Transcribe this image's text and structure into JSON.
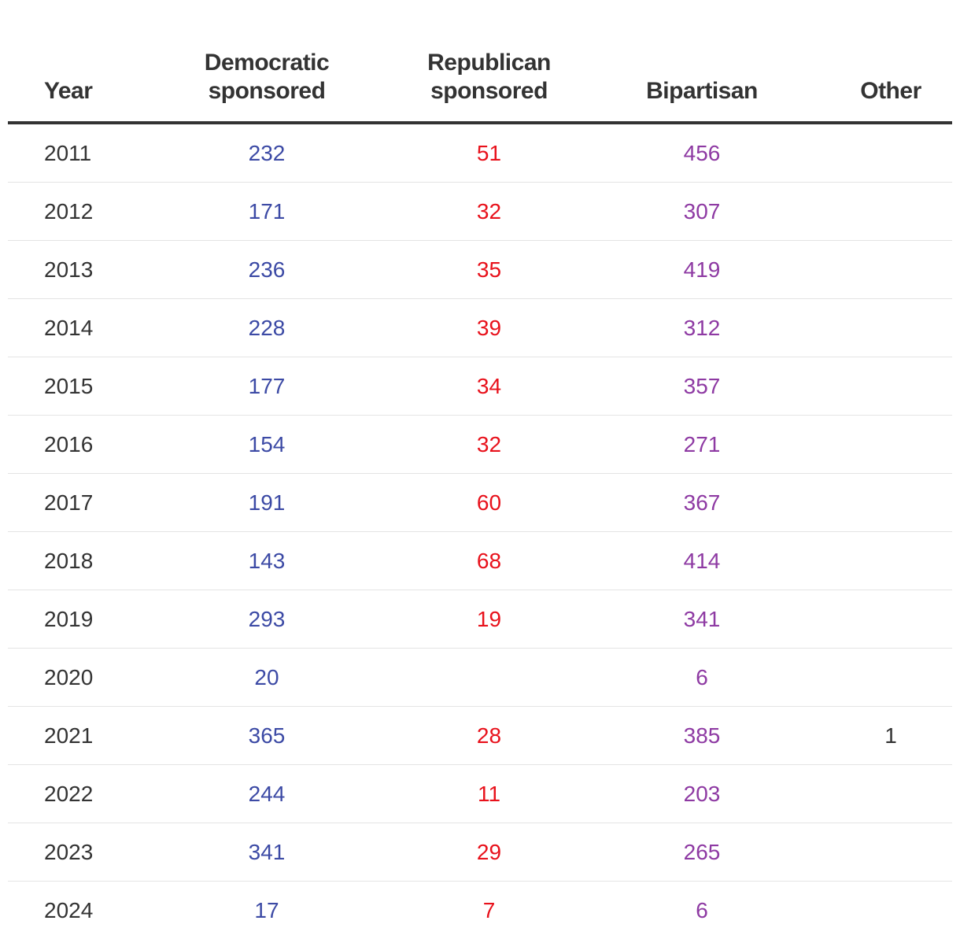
{
  "chart_data": {
    "type": "table",
    "columns": [
      {
        "key": "year",
        "label_lines": [
          "Year"
        ]
      },
      {
        "key": "democratic",
        "label_lines": [
          "Democratic",
          "sponsored"
        ]
      },
      {
        "key": "republican",
        "label_lines": [
          "Republican",
          "sponsored"
        ]
      },
      {
        "key": "bipartisan",
        "label_lines": [
          "Bipartisan"
        ]
      },
      {
        "key": "other",
        "label_lines": [
          "Other"
        ]
      }
    ],
    "rows": [
      {
        "year": "2011",
        "democratic": "232",
        "republican": "51",
        "bipartisan": "456",
        "other": ""
      },
      {
        "year": "2012",
        "democratic": "171",
        "republican": "32",
        "bipartisan": "307",
        "other": ""
      },
      {
        "year": "2013",
        "democratic": "236",
        "republican": "35",
        "bipartisan": "419",
        "other": ""
      },
      {
        "year": "2014",
        "democratic": "228",
        "republican": "39",
        "bipartisan": "312",
        "other": ""
      },
      {
        "year": "2015",
        "democratic": "177",
        "republican": "34",
        "bipartisan": "357",
        "other": ""
      },
      {
        "year": "2016",
        "democratic": "154",
        "republican": "32",
        "bipartisan": "271",
        "other": ""
      },
      {
        "year": "2017",
        "democratic": "191",
        "republican": "60",
        "bipartisan": "367",
        "other": ""
      },
      {
        "year": "2018",
        "democratic": "143",
        "republican": "68",
        "bipartisan": "414",
        "other": ""
      },
      {
        "year": "2019",
        "democratic": "293",
        "republican": "19",
        "bipartisan": "341",
        "other": ""
      },
      {
        "year": "2020",
        "democratic": "20",
        "republican": "",
        "bipartisan": "6",
        "other": ""
      },
      {
        "year": "2021",
        "democratic": "365",
        "republican": "28",
        "bipartisan": "385",
        "other": "1"
      },
      {
        "year": "2022",
        "democratic": "244",
        "republican": "11",
        "bipartisan": "203",
        "other": ""
      },
      {
        "year": "2023",
        "democratic": "341",
        "republican": "29",
        "bipartisan": "265",
        "other": ""
      },
      {
        "year": "2024",
        "democratic": "17",
        "republican": "7",
        "bipartisan": "6",
        "other": ""
      }
    ]
  },
  "colors": {
    "democratic": "#3c4aa5",
    "republican": "#e8111b",
    "bipartisan": "#8e3aa3",
    "text": "#333333",
    "header_rule": "#333333",
    "row_rule": "#e4e4e4"
  }
}
